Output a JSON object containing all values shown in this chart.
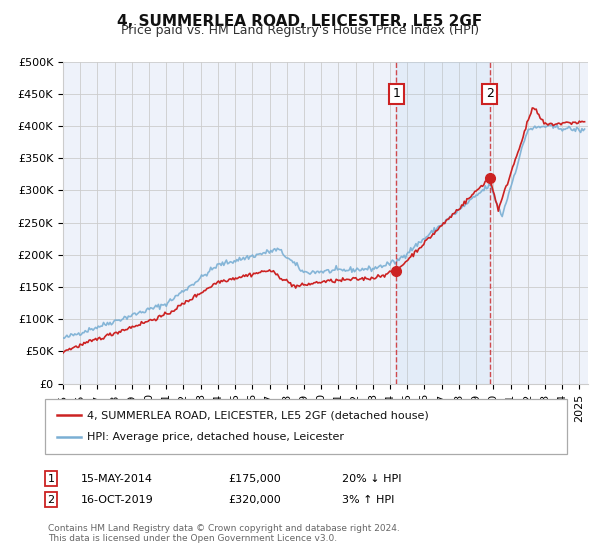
{
  "title": "4, SUMMERLEA ROAD, LEICESTER, LE5 2GF",
  "subtitle": "Price paid vs. HM Land Registry's House Price Index (HPI)",
  "ylabel_ticks": [
    "£0",
    "£50K",
    "£100K",
    "£150K",
    "£200K",
    "£250K",
    "£300K",
    "£350K",
    "£400K",
    "£450K",
    "£500K"
  ],
  "ytick_values": [
    0,
    50000,
    100000,
    150000,
    200000,
    250000,
    300000,
    350000,
    400000,
    450000,
    500000
  ],
  "ylim": [
    0,
    500000
  ],
  "xlim_start": 1995.0,
  "xlim_end": 2025.5,
  "background_color": "#ffffff",
  "plot_bg_color": "#eef2fa",
  "grid_color": "#cccccc",
  "hpi_line_color": "#7aafd4",
  "price_line_color": "#cc2222",
  "transaction1_date": 2014.37,
  "transaction1_price": 175000,
  "transaction1_label": "1",
  "transaction2_date": 2019.79,
  "transaction2_price": 320000,
  "transaction2_label": "2",
  "legend_price_label": "4, SUMMERLEA ROAD, LEICESTER, LE5 2GF (detached house)",
  "legend_hpi_label": "HPI: Average price, detached house, Leicester",
  "annotation1_date": "15-MAY-2014",
  "annotation1_price": "£175,000",
  "annotation1_hpi": "20% ↓ HPI",
  "annotation2_date": "16-OCT-2019",
  "annotation2_price": "£320,000",
  "annotation2_hpi": "3% ↑ HPI",
  "footer": "Contains HM Land Registry data © Crown copyright and database right 2024.\nThis data is licensed under the Open Government Licence v3.0.",
  "title_fontsize": 11,
  "subtitle_fontsize": 9,
  "tick_fontsize": 8,
  "legend_fontsize": 8,
  "ann_fontsize": 8,
  "footer_fontsize": 6.5
}
